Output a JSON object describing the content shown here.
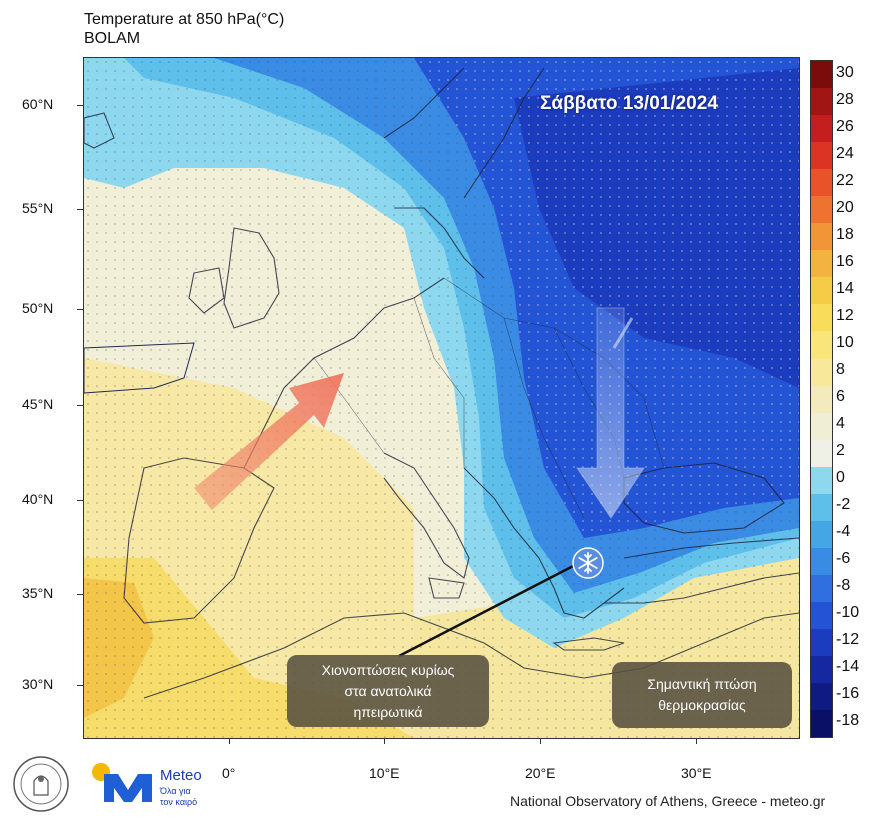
{
  "header": {
    "title_line1": "Temperature at 850 hPa(°C)",
    "title_line2": "BOLAM"
  },
  "date_label": "Σάββατο 13/01/2024",
  "axes": {
    "latitudes": [
      "60°N",
      "55°N",
      "50°N",
      "45°N",
      "40°N",
      "35°N",
      "30°N"
    ],
    "longitudes": [
      "0°",
      "10°E",
      "20°E",
      "30°E"
    ]
  },
  "colorbar": {
    "labels": [
      "30",
      "28",
      "26",
      "24",
      "22",
      "20",
      "18",
      "16",
      "14",
      "12",
      "10",
      "8",
      "6",
      "4",
      "2",
      "0",
      "-2",
      "-4",
      "-6",
      "-8",
      "-10",
      "-12",
      "-14",
      "-16",
      "-18"
    ],
    "colors": [
      "#7a0c0c",
      "#a11515",
      "#c41e1e",
      "#dd3322",
      "#e8532a",
      "#ee7330",
      "#f19536",
      "#f4b33e",
      "#f6cc47",
      "#f8dc5a",
      "#f9e57a",
      "#f7e89a",
      "#f3ebbb",
      "#f1eed6",
      "#eff0e6",
      "#8ed8ef",
      "#5ec0ea",
      "#45a6e6",
      "#3a8be4",
      "#2f6fe0",
      "#2454d6",
      "#1c3cbf",
      "#1528a2",
      "#0f1b83",
      "#0a1066"
    ]
  },
  "callouts": {
    "snow_text": "Χιονοπτώσεις κυρίως\nστα ανατολικά\nηπειρωτικά",
    "temperature_text": "Σημαντική πτώση\nθερμοκρασίας"
  },
  "icons": {
    "warm_arrow": "arrow-northeast-icon",
    "cold_arrow": "arrow-south-icon",
    "snow": "snowflake-icon"
  },
  "branding": {
    "meteo_name": "Meteo",
    "meteo_slogan": "Όλα για\nτον καιρό",
    "footer": "National Observatory of Athens, Greece - meteo.gr"
  }
}
